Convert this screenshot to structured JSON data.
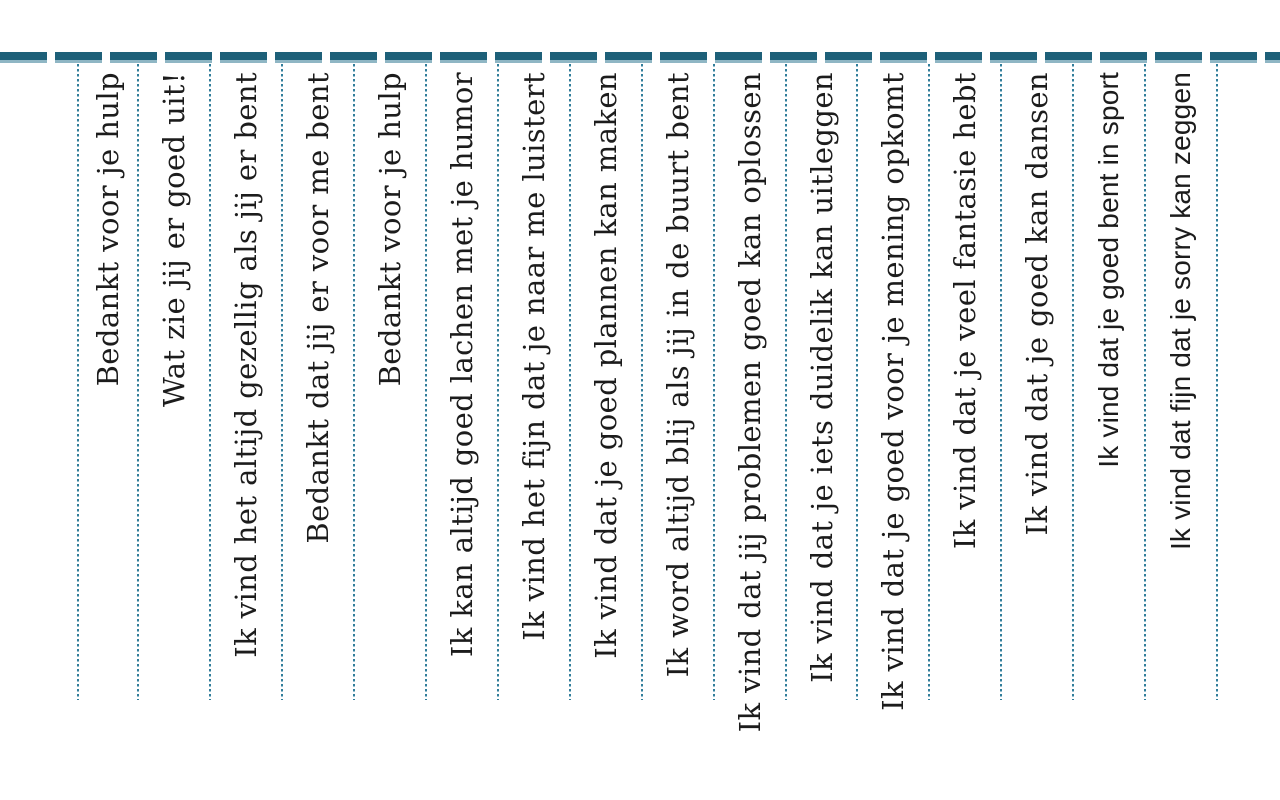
{
  "colors": {
    "dash": "#1e6079",
    "dash_light": "#8fb6c4",
    "dot": "#327e9b",
    "text": "#1c1c1c",
    "background": "#ffffff"
  },
  "phrases": [
    {
      "text": "Bedankt voor je hulp",
      "font": "slab"
    },
    {
      "text": "Wat zie jij er goed uit!",
      "font": "slab"
    },
    {
      "text": "Ik vind het altijd gezellig als jij er bent",
      "font": "slab"
    },
    {
      "text": "Bedankt dat jij er voor me bent",
      "font": "slab"
    },
    {
      "text": "Bedankt voor je hulp",
      "font": "slab"
    },
    {
      "text": "Ik kan altijd goed lachen met je humor",
      "font": "slab"
    },
    {
      "text": "Ik vind het fijn dat je naar me luistert",
      "font": "slab"
    },
    {
      "text": "Ik vind dat je goed plannen kan maken",
      "font": "slab"
    },
    {
      "text": "Ik word altijd blij als jij in de buurt bent",
      "font": "slab"
    },
    {
      "text": "Ik vind dat jij problemen goed kan oplossen",
      "font": "slab"
    },
    {
      "text": "Ik vind dat je iets duidelik kan uitleggen",
      "font": "slab"
    },
    {
      "text": "Ik vind dat je goed voor je mening opkomt",
      "font": "slab"
    },
    {
      "text": "Ik vind dat je veel fantasie hebt",
      "font": "slab"
    },
    {
      "text": "Ik vind dat je goed kan dansen",
      "font": "slab"
    },
    {
      "text": "Ik vind dat je goed bent in sport",
      "font": "sans"
    },
    {
      "text": "Ik vind dat fijn dat je sorry kan zeggen",
      "font": "sans"
    }
  ]
}
